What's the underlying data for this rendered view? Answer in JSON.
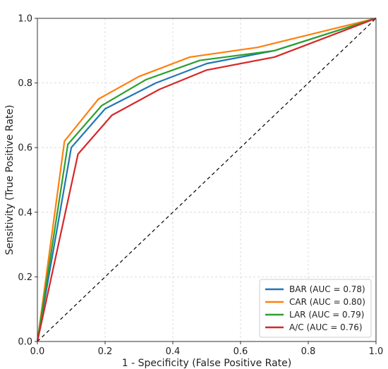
{
  "chart_data": {
    "type": "line",
    "title": "",
    "xlabel": "1 - Specificity (False Positive Rate)",
    "ylabel": "Sensitivity (True Positive Rate)",
    "xlim": [
      0,
      1
    ],
    "ylim": [
      0,
      1
    ],
    "x_ticks": [
      "0.0",
      "0.2",
      "0.4",
      "0.6",
      "0.8",
      "1.0"
    ],
    "y_ticks": [
      "0.0",
      "0.2",
      "0.4",
      "0.6",
      "0.8",
      "1.0"
    ],
    "grid": true,
    "legend_position": "bottom-right",
    "reference_line": {
      "x": [
        0,
        1
      ],
      "y": [
        0,
        1
      ],
      "style": "dashed",
      "color": "#000000"
    },
    "series": [
      {
        "name": "BAR (AUC = 0.78)",
        "color": "#1f77b4",
        "x": [
          0,
          0.1,
          0.2,
          0.35,
          0.5,
          0.7,
          1.0
        ],
        "y": [
          0,
          0.6,
          0.72,
          0.8,
          0.86,
          0.9,
          1.0
        ]
      },
      {
        "name": "CAR (AUC = 0.80)",
        "color": "#ff7f0e",
        "x": [
          0,
          0.08,
          0.18,
          0.3,
          0.45,
          0.65,
          1.0
        ],
        "y": [
          0,
          0.62,
          0.75,
          0.82,
          0.88,
          0.91,
          1.0
        ]
      },
      {
        "name": "LAR (AUC = 0.79)",
        "color": "#2ca02c",
        "x": [
          0,
          0.09,
          0.19,
          0.32,
          0.48,
          0.7,
          1.0
        ],
        "y": [
          0,
          0.61,
          0.73,
          0.81,
          0.87,
          0.9,
          1.0
        ]
      },
      {
        "name": "A/C (AUC = 0.76)",
        "color": "#d62728",
        "x": [
          0,
          0.12,
          0.22,
          0.36,
          0.5,
          0.7,
          1.0
        ],
        "y": [
          0,
          0.58,
          0.7,
          0.78,
          0.84,
          0.88,
          1.0
        ]
      }
    ]
  }
}
